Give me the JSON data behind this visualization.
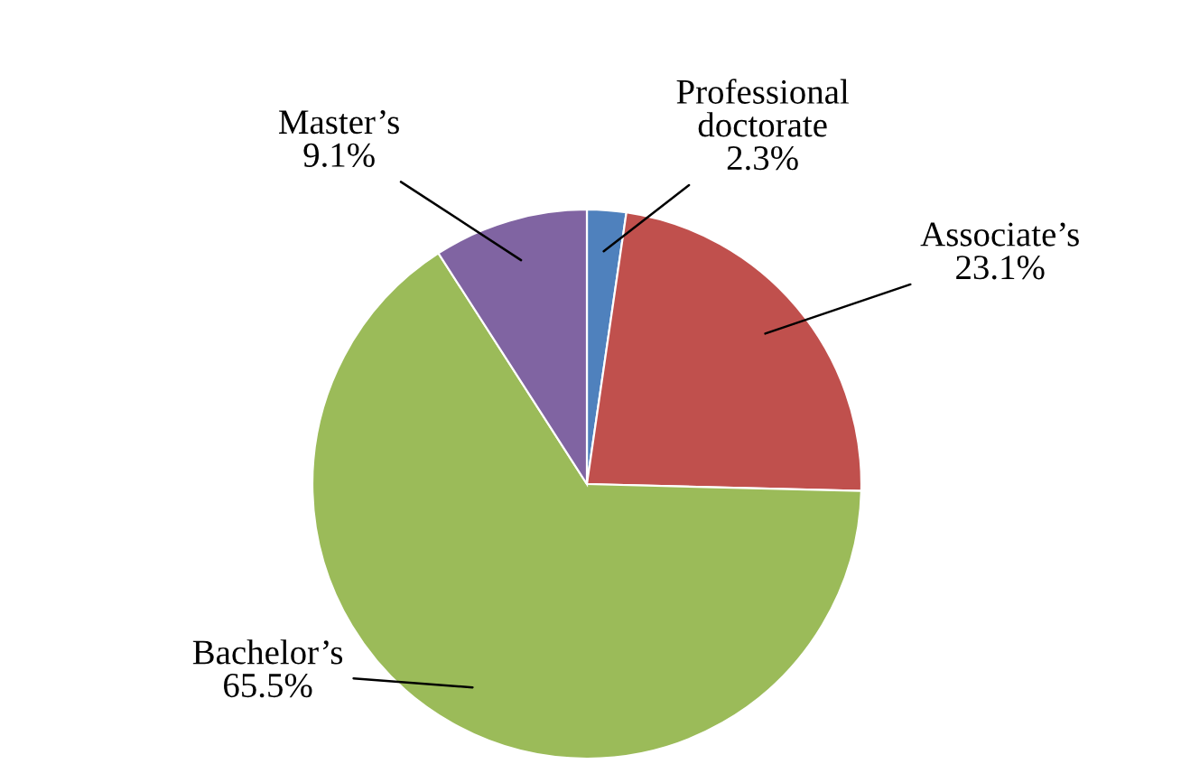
{
  "chart_data": {
    "type": "pie",
    "categories": [
      "Professional\ndoctorate",
      "Associate’s",
      "Bachelor’s",
      "Master’s"
    ],
    "values": [
      2.3,
      23.1,
      65.5,
      9.1
    ],
    "colors": [
      "#4f81bd",
      "#c0504d",
      "#9bbb59",
      "#8064a2"
    ],
    "value_labels": [
      "2.3%",
      "23.1%",
      "65.5%",
      "9.1%"
    ]
  }
}
